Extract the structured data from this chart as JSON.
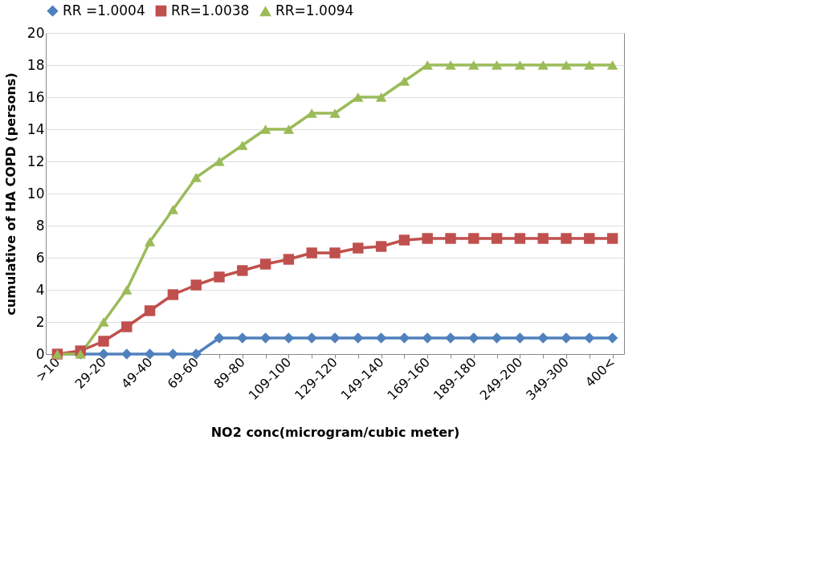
{
  "chart_data": {
    "type": "line",
    "xlabel": "NO2 conc(microgram/cubic meter)",
    "ylabel": "cumulative of HA COPD (persons)",
    "categories": [
      ">10",
      null,
      "29-20",
      null,
      "49-40",
      null,
      "69-60",
      null,
      "89-80",
      null,
      "109-100",
      null,
      "129-120",
      null,
      "149-140",
      null,
      "169-160",
      null,
      "189-180",
      null,
      "249-200",
      null,
      "349-300",
      null,
      "400<"
    ],
    "series": [
      {
        "name": "RR =1.0004",
        "color": "#4f81bd",
        "marker": "diamond",
        "values": [
          0,
          0,
          0,
          0,
          0,
          0,
          0,
          1,
          1,
          1,
          1,
          1,
          1,
          1,
          1,
          1,
          1,
          1,
          1,
          1,
          1,
          1,
          1,
          1,
          1
        ]
      },
      {
        "name": "RR=1.0038",
        "color": "#c0504d",
        "marker": "square",
        "values": [
          0,
          0.2,
          0.8,
          1.7,
          2.7,
          3.7,
          4.3,
          4.8,
          5.2,
          5.6,
          5.9,
          6.3,
          6.3,
          6.6,
          6.7,
          7.1,
          7.2,
          7.2,
          7.2,
          7.2,
          7.2,
          7.2,
          7.2,
          7.2,
          7.2
        ]
      },
      {
        "name": "RR=1.0094",
        "color": "#9bbb59",
        "marker": "triangle",
        "values": [
          0,
          0,
          2,
          4,
          7,
          9,
          11,
          12,
          13,
          14,
          14,
          15,
          15,
          16,
          16,
          17,
          18,
          18,
          18,
          18,
          18,
          18,
          18,
          18,
          18
        ]
      }
    ],
    "ylim": [
      0,
      20
    ],
    "yticks": [
      0,
      2,
      4,
      6,
      8,
      10,
      12,
      14,
      16,
      18,
      20
    ],
    "grid": "y",
    "legend": "top",
    "line_style": "solid"
  }
}
